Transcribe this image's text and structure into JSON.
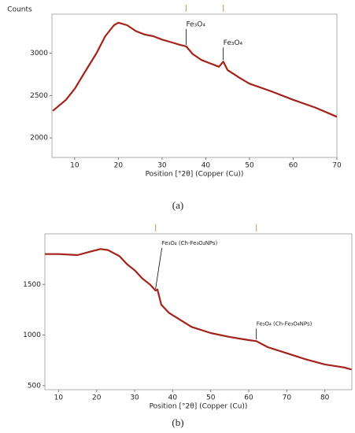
{
  "chart_data": [
    {
      "type": "line",
      "y_label": "Counts",
      "x_label": "Position [°2θ] (Copper (Cu))",
      "caption": "(a)",
      "xlim": [
        4.8,
        70
      ],
      "ylim": [
        1770,
        3460
      ],
      "xticks": [
        10,
        20,
        30,
        40,
        50,
        60,
        70
      ],
      "yticks": [
        2000,
        2500,
        3000
      ],
      "series": [
        {
          "color": "#a3231b",
          "x": [
            5,
            8,
            10,
            12,
            15,
            17,
            19,
            20,
            22,
            24,
            26,
            28,
            30,
            32,
            34,
            35.5,
            37,
            39,
            41,
            43,
            44,
            45,
            48,
            50,
            55,
            60,
            65,
            70
          ],
          "values": [
            2320,
            2450,
            2580,
            2750,
            3000,
            3200,
            3330,
            3360,
            3330,
            3260,
            3220,
            3200,
            3160,
            3130,
            3100,
            3080,
            2990,
            2920,
            2880,
            2840,
            2900,
            2800,
            2700,
            2640,
            2550,
            2450,
            2360,
            2250
          ]
        }
      ],
      "annotations": [
        {
          "text": "Fe₃O₄",
          "x": 35.5,
          "y": 3080
        },
        {
          "text": "Fe₃O₄",
          "x": 44,
          "y": 2900
        }
      ]
    },
    {
      "type": "line",
      "x_label": "Position [°2θ] (Copper (Cu))",
      "caption": "(b)",
      "xlim": [
        6.4,
        87.1
      ],
      "ylim": [
        460,
        2000
      ],
      "xticks": [
        10,
        20,
        30,
        40,
        50,
        60,
        70,
        80
      ],
      "yticks": [
        500,
        1000,
        1500
      ],
      "series": [
        {
          "color": "#a3231b",
          "x": [
            6.4,
            10,
            15,
            18,
            21,
            23,
            26,
            28,
            30,
            32,
            34,
            35.5,
            36,
            37,
            39,
            42,
            45,
            50,
            55,
            60,
            62,
            65,
            70,
            75,
            80,
            85,
            87
          ],
          "values": [
            1800,
            1800,
            1790,
            1820,
            1850,
            1840,
            1780,
            1700,
            1640,
            1560,
            1500,
            1440,
            1450,
            1300,
            1220,
            1150,
            1080,
            1020,
            980,
            950,
            940,
            880,
            820,
            760,
            710,
            680,
            660
          ]
        }
      ],
      "annotations": [
        {
          "text": "Fe₃O₄ (Ch-Fe₃O₄NPs)",
          "x": 35.5,
          "y": 1440
        },
        {
          "text": "Fe₃O₄ (Ch-Fe₃O₄NPs)",
          "x": 62,
          "y": 940
        }
      ]
    }
  ]
}
